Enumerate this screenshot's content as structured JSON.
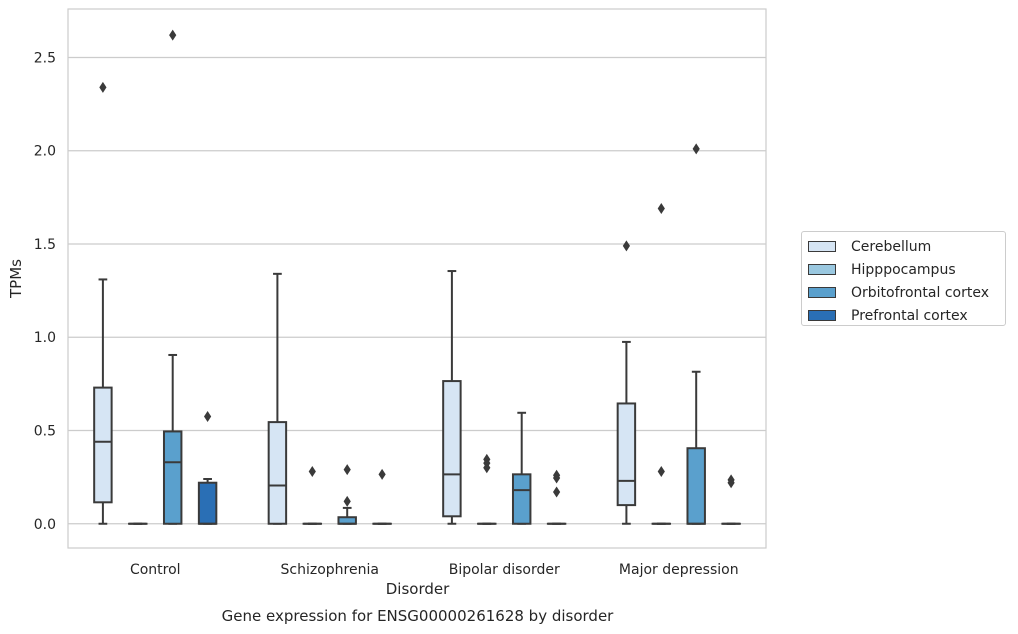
{
  "chart_data": {
    "type": "box",
    "title": "Gene expression for ENSG00000261628 by disorder",
    "xlabel": "Disorder",
    "ylabel": "TPMs",
    "ylim": [
      -0.13,
      2.76
    ],
    "yticks": [
      "0.0",
      "0.5",
      "1.0",
      "1.5",
      "2.0",
      "2.5"
    ],
    "grid": true,
    "legend_position": "right",
    "categories": [
      "Control",
      "Schizophrenia",
      "Bipolar disorder",
      "Major depression"
    ],
    "series": [
      {
        "name": "Cerebellum",
        "color": "#d6e5f4",
        "boxes": [
          {
            "whislo": 0.0,
            "q1": 0.115,
            "med": 0.44,
            "q3": 0.73,
            "whishi": 1.31,
            "fliers": [
              2.34
            ]
          },
          {
            "whislo": 0.0,
            "q1": 0.0,
            "med": 0.205,
            "q3": 0.545,
            "whishi": 1.34,
            "fliers": []
          },
          {
            "whislo": 0.0,
            "q1": 0.04,
            "med": 0.265,
            "q3": 0.765,
            "whishi": 1.355,
            "fliers": []
          },
          {
            "whislo": 0.0,
            "q1": 0.1,
            "med": 0.23,
            "q3": 0.645,
            "whishi": 0.975,
            "fliers": [
              1.49
            ]
          }
        ]
      },
      {
        "name": "Hipppocampus",
        "color": "#9ac8e0",
        "boxes": [
          {
            "whislo": 0.0,
            "q1": 0.0,
            "med": 0.0,
            "q3": 0.0,
            "whishi": 0.0,
            "fliers": []
          },
          {
            "whislo": 0.0,
            "q1": 0.0,
            "med": 0.0,
            "q3": 0.0,
            "whishi": 0.0,
            "fliers": [
              0.28
            ]
          },
          {
            "whislo": 0.0,
            "q1": 0.0,
            "med": 0.0,
            "q3": 0.0,
            "whishi": 0.0,
            "fliers": [
              0.3,
              0.325,
              0.345
            ]
          },
          {
            "whislo": 0.0,
            "q1": 0.0,
            "med": 0.0,
            "q3": 0.0,
            "whishi": 0.0,
            "fliers": [
              0.28,
              1.69
            ]
          }
        ]
      },
      {
        "name": "Orbitofrontal cortex",
        "color": "#5aa0cd",
        "boxes": [
          {
            "whislo": 0.0,
            "q1": 0.0,
            "med": 0.33,
            "q3": 0.495,
            "whishi": 0.905,
            "fliers": [
              2.62
            ]
          },
          {
            "whislo": 0.0,
            "q1": 0.0,
            "med": 0.0,
            "q3": 0.035,
            "whishi": 0.085,
            "fliers": [
              0.12,
              0.29
            ]
          },
          {
            "whislo": 0.0,
            "q1": 0.0,
            "med": 0.18,
            "q3": 0.265,
            "whishi": 0.595,
            "fliers": []
          },
          {
            "whislo": 0.0,
            "q1": 0.0,
            "med": 0.0,
            "q3": 0.405,
            "whishi": 0.815,
            "fliers": [
              2.01
            ]
          }
        ]
      },
      {
        "name": "Prefrontal cortex",
        "color": "#2a6fb5",
        "boxes": [
          {
            "whislo": 0.0,
            "q1": 0.0,
            "med": 0.0,
            "q3": 0.22,
            "whishi": 0.24,
            "fliers": [
              0.575
            ]
          },
          {
            "whislo": 0.0,
            "q1": 0.0,
            "med": 0.0,
            "q3": 0.0,
            "whishi": 0.0,
            "fliers": [
              0.265
            ]
          },
          {
            "whislo": 0.0,
            "q1": 0.0,
            "med": 0.0,
            "q3": 0.0,
            "whishi": 0.0,
            "fliers": [
              0.17,
              0.245,
              0.26
            ]
          },
          {
            "whislo": 0.0,
            "q1": 0.0,
            "med": 0.0,
            "q3": 0.0,
            "whishi": 0.0,
            "fliers": [
              0.22,
              0.235
            ]
          }
        ]
      }
    ]
  }
}
